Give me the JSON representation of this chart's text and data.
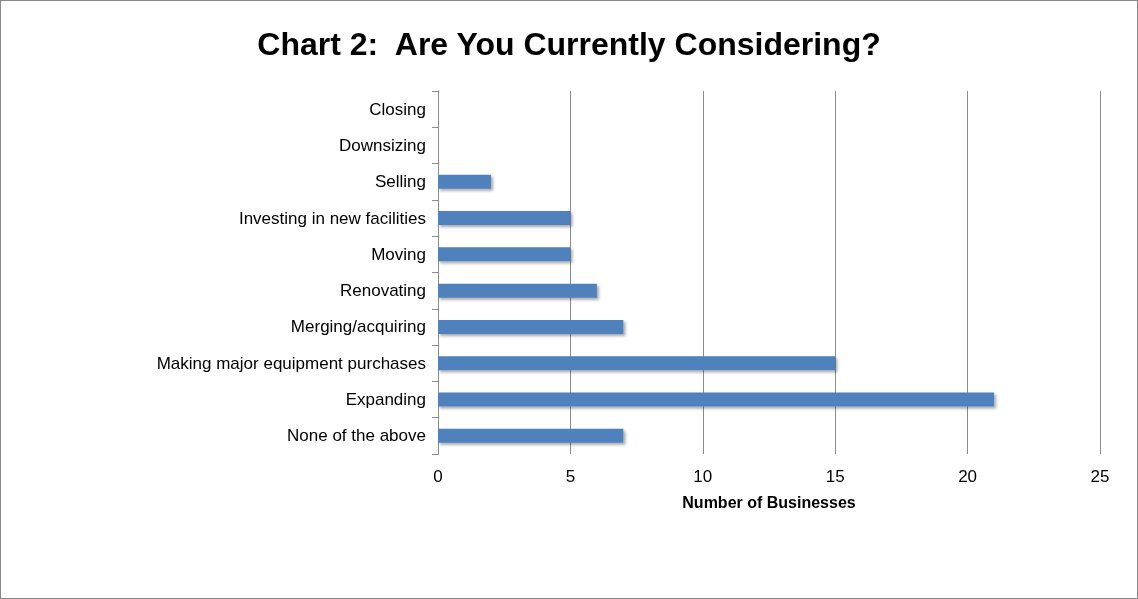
{
  "chart_data": {
    "type": "bar",
    "orientation": "horizontal",
    "title": "Chart 2:  Are You Currently Considering?",
    "xlabel": "Number of Businesses",
    "categories": [
      "Closing",
      "Downsizing",
      "Selling",
      "Investing in new facilities",
      "Moving",
      "Renovating",
      "Merging/acquiring",
      "Making major equipment purchases",
      "Expanding",
      "None of the above"
    ],
    "values": [
      0,
      0,
      2,
      5,
      5,
      6,
      7,
      15,
      21,
      7
    ],
    "color": "#4f81bd",
    "xlim": [
      0,
      25
    ],
    "xticks": [
      0,
      5,
      10,
      15,
      20,
      25
    ],
    "grid": "x"
  }
}
